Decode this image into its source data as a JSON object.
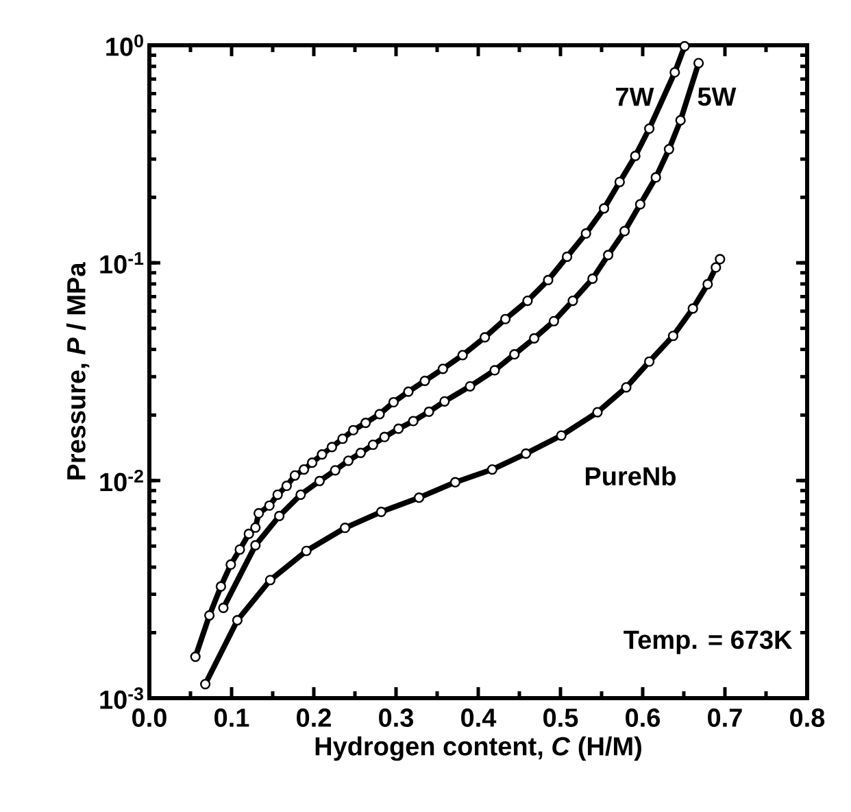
{
  "chart_data": {
    "type": "line",
    "xlabel": "Hydrogen content, *C* (H/M)",
    "ylabel": "Pressure, *P* / MPa",
    "log": "y",
    "marker": "circle",
    "xlim": [
      0,
      0.8
    ],
    "ylim": [
      0.001,
      1
    ],
    "xticks": [
      {
        "value": 0,
        "label": "0.0"
      },
      0.1,
      0.2,
      0.3,
      0.4,
      0.5,
      0.6,
      0.7,
      0.8
    ],
    "yticks": [
      {
        "value": 0.001,
        "label": "10$^{-3}$"
      },
      {
        "value": 0.01,
        "label": "10$^{-2}$"
      },
      {
        "value": 0.1,
        "label": "10$^{-1}$"
      },
      {
        "value": 1,
        "label": "10$^{0}$"
      }
    ],
    "annotations": [
      "Temp. = 673K"
    ],
    "series": [
      {
        "name": "7W",
        "color": "#000000",
        "x": [
          0.056,
          0.073,
          0.087,
          0.099,
          0.11,
          0.121,
          0.129,
          0.133,
          0.146,
          0.156,
          0.167,
          0.177,
          0.188,
          0.198,
          0.21,
          0.222,
          0.235,
          0.248,
          0.263,
          0.28,
          0.297,
          0.315,
          0.335,
          0.357,
          0.381,
          0.408,
          0.433,
          0.46,
          0.485,
          0.508,
          0.531,
          0.553,
          0.572,
          0.591,
          0.608,
          0.639,
          0.651
        ],
        "values": [
          0.00155,
          0.0024,
          0.00326,
          0.00411,
          0.00482,
          0.00569,
          0.00608,
          0.00707,
          0.00767,
          0.00861,
          0.00945,
          0.01055,
          0.01124,
          0.01208,
          0.01318,
          0.01425,
          0.01556,
          0.01704,
          0.01841,
          0.02018,
          0.0229,
          0.0256,
          0.0287,
          0.0326,
          0.0377,
          0.0455,
          0.0552,
          0.067,
          0.0834,
          0.1067,
          0.1365,
          0.178,
          0.2355,
          0.31,
          0.414,
          0.751,
          0.99
        ]
      },
      {
        "name": "5W",
        "color": "#000000",
        "x": [
          0.09,
          0.129,
          0.158,
          0.184,
          0.207,
          0.226,
          0.242,
          0.257,
          0.272,
          0.286,
          0.303,
          0.321,
          0.34,
          0.359,
          0.39,
          0.42,
          0.444,
          0.468,
          0.492,
          0.515,
          0.539,
          0.558,
          0.578,
          0.597,
          0.616,
          0.632,
          0.646,
          0.668
        ],
        "values": [
          0.0026,
          0.00504,
          0.00687,
          0.00861,
          0.00995,
          0.01114,
          0.01233,
          0.0134,
          0.0146,
          0.01585,
          0.0173,
          0.01876,
          0.0207,
          0.0231,
          0.0271,
          0.0321,
          0.038,
          0.045,
          0.054,
          0.067,
          0.0846,
          0.1087,
          0.14,
          0.186,
          0.247,
          0.333,
          0.452,
          0.828
        ]
      },
      {
        "name": "PureNb",
        "color": "#000000",
        "x": [
          0.068,
          0.107,
          0.147,
          0.191,
          0.238,
          0.282,
          0.328,
          0.372,
          0.417,
          0.458,
          0.501,
          0.545,
          0.58,
          0.608,
          0.637,
          0.661,
          0.679,
          0.689,
          0.694
        ],
        "values": [
          0.00116,
          0.00228,
          0.00349,
          0.00475,
          0.00606,
          0.00718,
          0.00834,
          0.00982,
          0.01124,
          0.0133,
          0.0161,
          0.0206,
          0.0268,
          0.0352,
          0.0462,
          0.0617,
          0.0798,
          0.0953,
          0.104
        ]
      }
    ]
  }
}
